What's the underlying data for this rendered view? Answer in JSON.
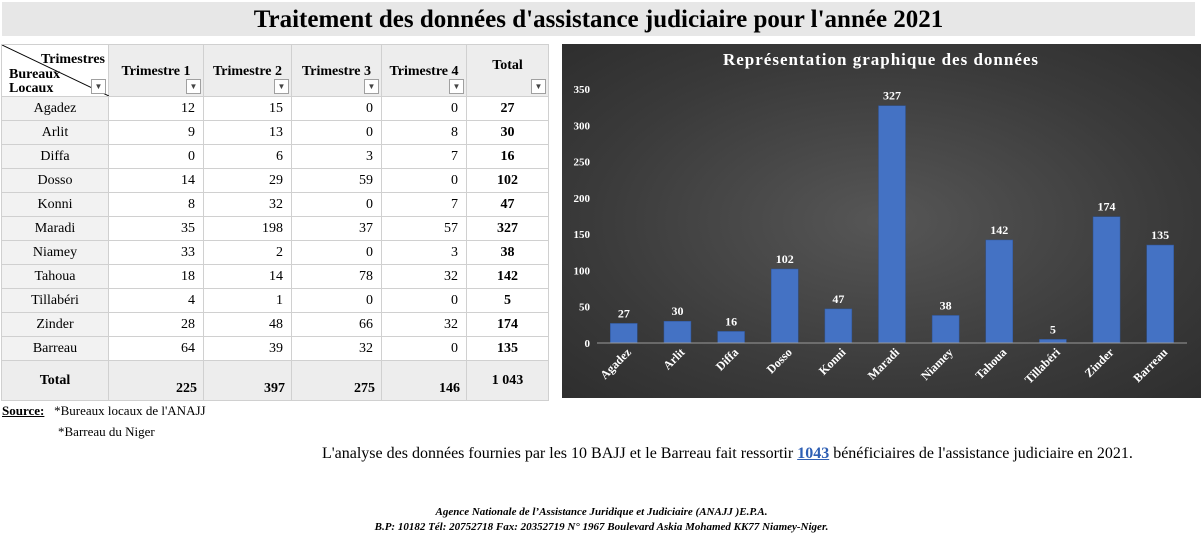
{
  "title": "Traitement des données d'assistance judiciaire pour l'année 2021",
  "table": {
    "corner_top": "Trimestres",
    "corner_bottom_1": "Bureaux",
    "corner_bottom_2": "Locaux",
    "headers": [
      "Trimestre 1",
      "Trimestre 2",
      "Trimestre 3",
      "Trimestre 4"
    ],
    "total_header": "Total",
    "rows": [
      {
        "name": "Agadez",
        "q": [
          "12",
          "15",
          "0",
          "0"
        ],
        "total": "27"
      },
      {
        "name": "Arlit",
        "q": [
          "9",
          "13",
          "0",
          "8"
        ],
        "total": "30"
      },
      {
        "name": "Diffa",
        "q": [
          "0",
          "6",
          "3",
          "7"
        ],
        "total": "16"
      },
      {
        "name": "Dosso",
        "q": [
          "14",
          "29",
          "59",
          "0"
        ],
        "total": "102"
      },
      {
        "name": "Konni",
        "q": [
          "8",
          "32",
          "0",
          "7"
        ],
        "total": "47"
      },
      {
        "name": "Maradi",
        "q": [
          "35",
          "198",
          "37",
          "57"
        ],
        "total": "327"
      },
      {
        "name": "Niamey",
        "q": [
          "33",
          "2",
          "0",
          "3"
        ],
        "total": "38"
      },
      {
        "name": "Tahoua",
        "q": [
          "18",
          "14",
          "78",
          "32"
        ],
        "total": "142"
      },
      {
        "name": "Tillabéri",
        "q": [
          "4",
          "1",
          "0",
          "0"
        ],
        "total": "5"
      },
      {
        "name": "Zinder",
        "q": [
          "28",
          "48",
          "66",
          "32"
        ],
        "total": "174"
      },
      {
        "name": "Barreau",
        "q": [
          "64",
          "39",
          "32",
          "0"
        ],
        "total": "135"
      }
    ],
    "total_label": "Total",
    "totals": [
      "225",
      "397",
      "275",
      "146"
    ],
    "grand_total": "1 043"
  },
  "chart_data": {
    "type": "bar",
    "title": "Représentation graphique des données",
    "categories": [
      "Agadez",
      "Arlit",
      "Diffa",
      "Dosso",
      "Konni",
      "Maradi",
      "Niamey",
      "Tahoua",
      "Tillabéri",
      "Zinder",
      "Barreau"
    ],
    "values": [
      27,
      30,
      16,
      102,
      47,
      327,
      38,
      142,
      5,
      174,
      135
    ],
    "ylim": [
      0,
      350
    ],
    "yticks": [
      0,
      50,
      100,
      150,
      200,
      250,
      300,
      350
    ],
    "data_labels": true,
    "grid": false,
    "legend": "none",
    "colors": {
      "bar": "#4472c4",
      "background": "#404040",
      "text": "#ffffff"
    }
  },
  "source": {
    "label": "Source:",
    "line1": "*Bureaux locaux de l'ANAJJ",
    "line2": "*Barreau du Niger"
  },
  "analysis": {
    "before": "L'analyse des données fournies par les 10 BAJJ et le Barreau fait ressortir ",
    "highlight": "1043",
    "after": " bénéficiaires de l'assistance judiciaire en 2021."
  },
  "agency": {
    "line1": "Agence Nationale de l’Assistance Juridique et Judiciaire (ANAJJ )E.P.A.",
    "line2": "B.P: 10182 Tél: 20752718 Fax: 20352719 N° 1967 Boulevard Askia Mohamed KK77 Niamey-Niger."
  }
}
